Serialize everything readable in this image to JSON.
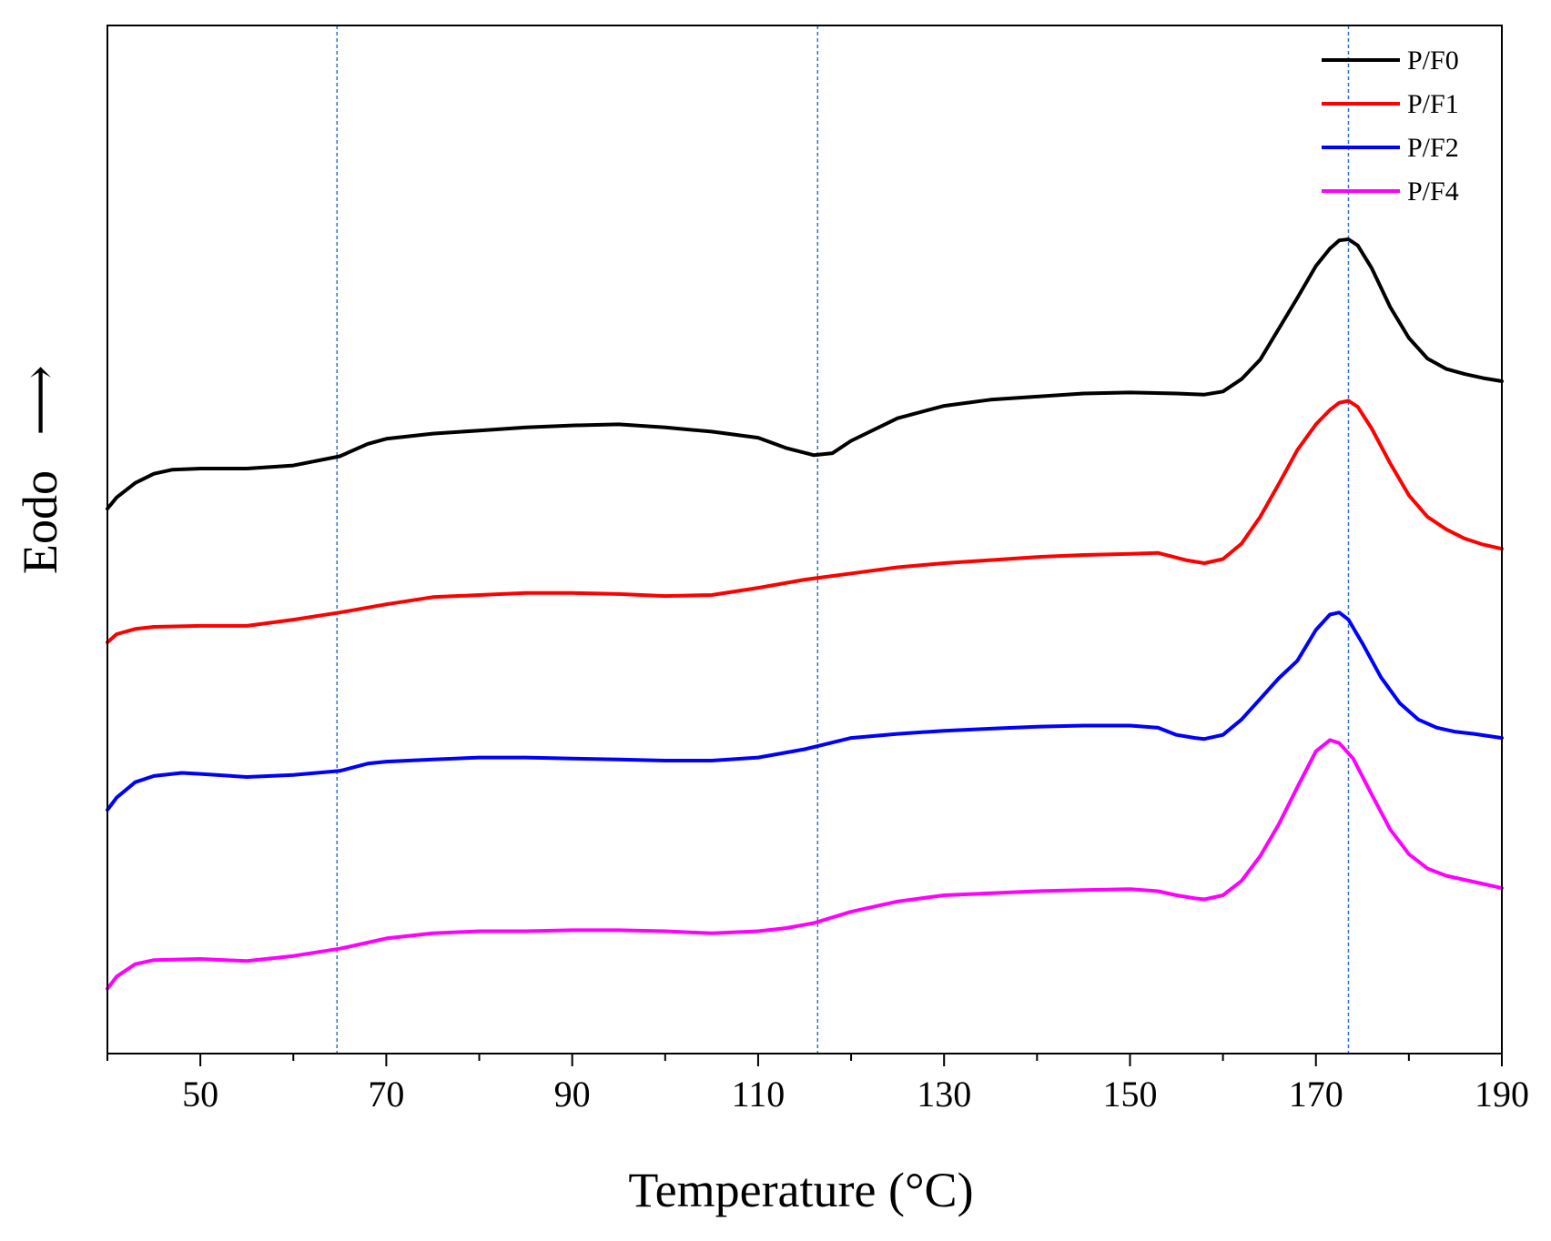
{
  "chart_data": {
    "type": "line",
    "title": "",
    "xlabel": "Temperature (°C)",
    "ylabel": "Eodo",
    "ylabel_arrow": "⟶",
    "xlim": [
      40,
      190
    ],
    "ylim": [
      0,
      100
    ],
    "xticks": [
      50,
      70,
      90,
      110,
      130,
      150,
      170,
      190
    ],
    "minor_xticks": [
      40,
      60,
      80,
      100,
      120,
      140,
      160,
      180
    ],
    "grid": false,
    "legend_position": "top-right",
    "reference_lines_x": [
      64.7,
      116.4,
      173.5
    ],
    "reference_line_color": "#2f6fd6",
    "series": [
      {
        "name": "P/F0",
        "color": "#000000",
        "points": [
          [
            40,
            53
          ],
          [
            41,
            54.1
          ],
          [
            43,
            55.5
          ],
          [
            45,
            56.4
          ],
          [
            47,
            56.8
          ],
          [
            50,
            56.9
          ],
          [
            55,
            56.9
          ],
          [
            60,
            57.2
          ],
          [
            65,
            58.1
          ],
          [
            68,
            59.3
          ],
          [
            70,
            59.8
          ],
          [
            75,
            60.3
          ],
          [
            80,
            60.6
          ],
          [
            85,
            60.9
          ],
          [
            90,
            61.1
          ],
          [
            95,
            61.2
          ],
          [
            100,
            60.9
          ],
          [
            105,
            60.5
          ],
          [
            110,
            59.9
          ],
          [
            113,
            58.9
          ],
          [
            116,
            58.2
          ],
          [
            118,
            58.4
          ],
          [
            120,
            59.6
          ],
          [
            125,
            61.8
          ],
          [
            130,
            63.0
          ],
          [
            135,
            63.6
          ],
          [
            140,
            63.9
          ],
          [
            145,
            64.2
          ],
          [
            150,
            64.3
          ],
          [
            155,
            64.2
          ],
          [
            158,
            64.1
          ],
          [
            160,
            64.4
          ],
          [
            162,
            65.6
          ],
          [
            164,
            67.5
          ],
          [
            166,
            70.5
          ],
          [
            168,
            73.5
          ],
          [
            170,
            76.6
          ],
          [
            171.5,
            78.3
          ],
          [
            172.5,
            79.1
          ],
          [
            173.5,
            79.2
          ],
          [
            174.5,
            78.6
          ],
          [
            176,
            76.4
          ],
          [
            178,
            72.6
          ],
          [
            180,
            69.6
          ],
          [
            182,
            67.6
          ],
          [
            184,
            66.6
          ],
          [
            186,
            66.1
          ],
          [
            188,
            65.7
          ],
          [
            190,
            65.4
          ]
        ]
      },
      {
        "name": "P/F1",
        "color": "#ff0000",
        "points": [
          [
            40,
            40
          ],
          [
            41,
            40.8
          ],
          [
            43,
            41.3
          ],
          [
            45,
            41.5
          ],
          [
            50,
            41.6
          ],
          [
            55,
            41.6
          ],
          [
            60,
            42.2
          ],
          [
            65,
            42.9
          ],
          [
            70,
            43.7
          ],
          [
            75,
            44.4
          ],
          [
            80,
            44.6
          ],
          [
            85,
            44.8
          ],
          [
            90,
            44.8
          ],
          [
            95,
            44.7
          ],
          [
            100,
            44.5
          ],
          [
            105,
            44.6
          ],
          [
            110,
            45.3
          ],
          [
            115,
            46.1
          ],
          [
            120,
            46.7
          ],
          [
            125,
            47.3
          ],
          [
            130,
            47.7
          ],
          [
            135,
            48.0
          ],
          [
            140,
            48.3
          ],
          [
            145,
            48.5
          ],
          [
            150,
            48.6
          ],
          [
            153,
            48.7
          ],
          [
            156,
            48.0
          ],
          [
            158,
            47.7
          ],
          [
            160,
            48.1
          ],
          [
            162,
            49.6
          ],
          [
            164,
            52.2
          ],
          [
            166,
            55.4
          ],
          [
            168,
            58.7
          ],
          [
            170,
            61.2
          ],
          [
            171.5,
            62.6
          ],
          [
            172.5,
            63.3
          ],
          [
            173.5,
            63.5
          ],
          [
            174.5,
            62.9
          ],
          [
            176,
            60.8
          ],
          [
            178,
            57.4
          ],
          [
            180,
            54.3
          ],
          [
            182,
            52.2
          ],
          [
            184,
            51.0
          ],
          [
            186,
            50.1
          ],
          [
            188,
            49.5
          ],
          [
            190,
            49.1
          ]
        ]
      },
      {
        "name": "P/F2",
        "color": "#0000ff",
        "points": [
          [
            40,
            23.7
          ],
          [
            41,
            24.9
          ],
          [
            43,
            26.4
          ],
          [
            45,
            27.0
          ],
          [
            48,
            27.3
          ],
          [
            50,
            27.2
          ],
          [
            55,
            26.9
          ],
          [
            60,
            27.1
          ],
          [
            65,
            27.5
          ],
          [
            68,
            28.2
          ],
          [
            70,
            28.4
          ],
          [
            75,
            28.6
          ],
          [
            80,
            28.8
          ],
          [
            85,
            28.8
          ],
          [
            90,
            28.7
          ],
          [
            95,
            28.6
          ],
          [
            100,
            28.5
          ],
          [
            105,
            28.5
          ],
          [
            110,
            28.8
          ],
          [
            115,
            29.6
          ],
          [
            120,
            30.7
          ],
          [
            125,
            31.1
          ],
          [
            130,
            31.4
          ],
          [
            135,
            31.6
          ],
          [
            140,
            31.8
          ],
          [
            145,
            31.9
          ],
          [
            150,
            31.9
          ],
          [
            153,
            31.7
          ],
          [
            155,
            31.0
          ],
          [
            157,
            30.7
          ],
          [
            158,
            30.6
          ],
          [
            160,
            31.0
          ],
          [
            162,
            32.5
          ],
          [
            164,
            34.5
          ],
          [
            166,
            36.5
          ],
          [
            168,
            38.2
          ],
          [
            170,
            41.2
          ],
          [
            171.5,
            42.7
          ],
          [
            172.5,
            42.9
          ],
          [
            173.5,
            42.2
          ],
          [
            175,
            39.9
          ],
          [
            177,
            36.6
          ],
          [
            179,
            34.1
          ],
          [
            181,
            32.5
          ],
          [
            183,
            31.7
          ],
          [
            185,
            31.3
          ],
          [
            187,
            31.1
          ],
          [
            190,
            30.7
          ]
        ]
      },
      {
        "name": "P/F4",
        "color": "#ff00ff",
        "points": [
          [
            40,
            6.3
          ],
          [
            41,
            7.5
          ],
          [
            43,
            8.7
          ],
          [
            45,
            9.1
          ],
          [
            50,
            9.2
          ],
          [
            55,
            9.0
          ],
          [
            60,
            9.5
          ],
          [
            65,
            10.2
          ],
          [
            68,
            10.8
          ],
          [
            70,
            11.2
          ],
          [
            75,
            11.7
          ],
          [
            80,
            11.9
          ],
          [
            85,
            11.9
          ],
          [
            90,
            12.0
          ],
          [
            95,
            12.0
          ],
          [
            100,
            11.9
          ],
          [
            105,
            11.7
          ],
          [
            110,
            11.9
          ],
          [
            113,
            12.2
          ],
          [
            116,
            12.7
          ],
          [
            120,
            13.8
          ],
          [
            125,
            14.8
          ],
          [
            130,
            15.4
          ],
          [
            135,
            15.6
          ],
          [
            140,
            15.8
          ],
          [
            145,
            15.9
          ],
          [
            150,
            16.0
          ],
          [
            153,
            15.8
          ],
          [
            155,
            15.4
          ],
          [
            157,
            15.1
          ],
          [
            158,
            15.0
          ],
          [
            160,
            15.4
          ],
          [
            162,
            16.8
          ],
          [
            164,
            19.2
          ],
          [
            166,
            22.3
          ],
          [
            168,
            25.9
          ],
          [
            170,
            29.4
          ],
          [
            171.5,
            30.5
          ],
          [
            172.5,
            30.2
          ],
          [
            174,
            28.7
          ],
          [
            176,
            25.2
          ],
          [
            178,
            21.8
          ],
          [
            180,
            19.4
          ],
          [
            182,
            18.0
          ],
          [
            184,
            17.3
          ],
          [
            186,
            16.9
          ],
          [
            188,
            16.5
          ],
          [
            190,
            16.1
          ]
        ]
      }
    ]
  }
}
